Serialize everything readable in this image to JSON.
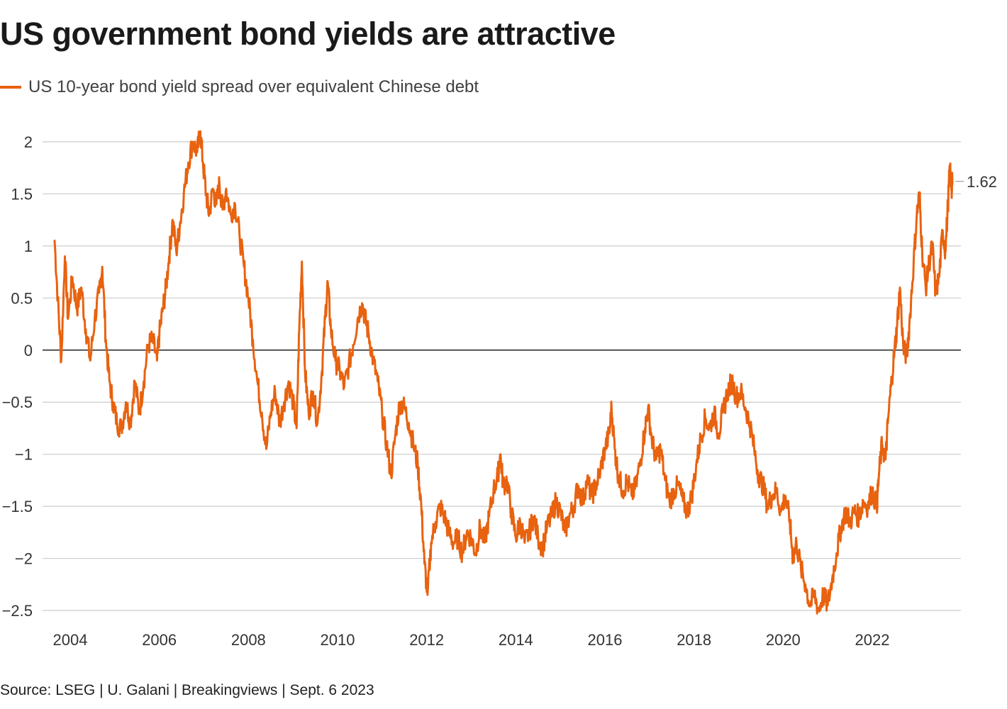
{
  "title": "US government bond yields are attractive",
  "source": "Source: LSEG | U. Galani | Breakingviews | Sept. 6 2023",
  "colors": {
    "series": "#e8620f",
    "grid": "#cccccc",
    "zero": "#222222"
  },
  "chart_data": {
    "type": "line",
    "title": "US government bond yields are attractive",
    "xlabel": "",
    "ylabel": "",
    "xlim": [
      2003.6,
      2023.75
    ],
    "ylim": [
      -2.5,
      2.2
    ],
    "yticks": [
      2,
      1.5,
      1,
      0.5,
      0,
      -0.5,
      -1,
      -1.5,
      -2,
      -2.5
    ],
    "ytick_labels": [
      "2",
      "1.5",
      "1",
      "0.5",
      "0",
      "−0.5",
      "−1",
      "−1.5",
      "−2",
      "−2.5"
    ],
    "xticks": [
      2004,
      2006,
      2008,
      2010,
      2012,
      2014,
      2016,
      2018,
      2020,
      2022
    ],
    "xtick_labels": [
      "2004",
      "2006",
      "2008",
      "2010",
      "2012",
      "2014",
      "2016",
      "2018",
      "2020",
      "2022"
    ],
    "grid": true,
    "legend_position": "top-left",
    "end_label": "1.62",
    "series": [
      {
        "name": "US 10-year bond yield spread over equivalent Chinese debt",
        "color": "#e8620f",
        "points": [
          [
            2003.65,
            1.05
          ],
          [
            2003.72,
            0.5
          ],
          [
            2003.8,
            -0.1
          ],
          [
            2003.88,
            0.9
          ],
          [
            2003.95,
            0.3
          ],
          [
            2004.05,
            0.7
          ],
          [
            2004.15,
            0.4
          ],
          [
            2004.25,
            0.6
          ],
          [
            2004.35,
            0.2
          ],
          [
            2004.45,
            -0.1
          ],
          [
            2004.55,
            0.3
          ],
          [
            2004.65,
            0.55
          ],
          [
            2004.72,
            0.8
          ],
          [
            2004.8,
            0.1
          ],
          [
            2004.88,
            -0.3
          ],
          [
            2004.96,
            -0.5
          ],
          [
            2005.05,
            -0.7
          ],
          [
            2005.15,
            -0.75
          ],
          [
            2005.25,
            -0.5
          ],
          [
            2005.35,
            -0.7
          ],
          [
            2005.45,
            -0.3
          ],
          [
            2005.55,
            -0.6
          ],
          [
            2005.65,
            -0.3
          ],
          [
            2005.75,
            0.05
          ],
          [
            2005.85,
            0.1
          ],
          [
            2005.95,
            -0.1
          ],
          [
            2006.0,
            0.15
          ],
          [
            2006.08,
            0.4
          ],
          [
            2006.15,
            0.6
          ],
          [
            2006.22,
            0.9
          ],
          [
            2006.3,
            1.25
          ],
          [
            2006.38,
            0.95
          ],
          [
            2006.46,
            1.2
          ],
          [
            2006.55,
            1.5
          ],
          [
            2006.65,
            1.8
          ],
          [
            2006.75,
            2.0
          ],
          [
            2006.85,
            1.9
          ],
          [
            2006.92,
            2.1
          ],
          [
            2006.98,
            1.8
          ],
          [
            2007.05,
            1.5
          ],
          [
            2007.12,
            1.3
          ],
          [
            2007.2,
            1.55
          ],
          [
            2007.28,
            1.4
          ],
          [
            2007.35,
            1.6
          ],
          [
            2007.42,
            1.35
          ],
          [
            2007.5,
            1.55
          ],
          [
            2007.6,
            1.3
          ],
          [
            2007.7,
            1.4
          ],
          [
            2007.8,
            1.1
          ],
          [
            2007.9,
            0.8
          ],
          [
            2008.0,
            0.5
          ],
          [
            2008.1,
            0.1
          ],
          [
            2008.2,
            -0.3
          ],
          [
            2008.3,
            -0.6
          ],
          [
            2008.4,
            -0.95
          ],
          [
            2008.5,
            -0.6
          ],
          [
            2008.6,
            -0.4
          ],
          [
            2008.7,
            -0.7
          ],
          [
            2008.8,
            -0.5
          ],
          [
            2008.9,
            -0.3
          ],
          [
            2009.0,
            -0.5
          ],
          [
            2009.08,
            -0.75
          ],
          [
            2009.14,
            0.2
          ],
          [
            2009.2,
            0.85
          ],
          [
            2009.27,
            -0.2
          ],
          [
            2009.35,
            -0.6
          ],
          [
            2009.45,
            -0.4
          ],
          [
            2009.55,
            -0.7
          ],
          [
            2009.65,
            -0.2
          ],
          [
            2009.72,
            0.3
          ],
          [
            2009.78,
            0.65
          ],
          [
            2009.85,
            0.2
          ],
          [
            2009.95,
            -0.1
          ],
          [
            2010.05,
            -0.2
          ],
          [
            2010.15,
            -0.35
          ],
          [
            2010.25,
            -0.15
          ],
          [
            2010.35,
            0.05
          ],
          [
            2010.45,
            0.3
          ],
          [
            2010.55,
            0.45
          ],
          [
            2010.62,
            0.3
          ],
          [
            2010.7,
            0.15
          ],
          [
            2010.8,
            -0.1
          ],
          [
            2010.9,
            -0.3
          ],
          [
            2011.0,
            -0.6
          ],
          [
            2011.1,
            -0.9
          ],
          [
            2011.2,
            -1.2
          ],
          [
            2011.3,
            -0.8
          ],
          [
            2011.4,
            -0.5
          ],
          [
            2011.5,
            -0.55
          ],
          [
            2011.6,
            -0.7
          ],
          [
            2011.7,
            -0.9
          ],
          [
            2011.8,
            -1.1
          ],
          [
            2011.88,
            -1.5
          ],
          [
            2011.95,
            -2.05
          ],
          [
            2012.02,
            -2.35
          ],
          [
            2012.1,
            -1.85
          ],
          [
            2012.2,
            -1.65
          ],
          [
            2012.3,
            -1.5
          ],
          [
            2012.4,
            -1.6
          ],
          [
            2012.5,
            -1.75
          ],
          [
            2012.6,
            -1.85
          ],
          [
            2012.7,
            -1.8
          ],
          [
            2012.8,
            -1.95
          ],
          [
            2012.9,
            -1.75
          ],
          [
            2013.0,
            -1.8
          ],
          [
            2013.1,
            -1.95
          ],
          [
            2013.2,
            -1.7
          ],
          [
            2013.3,
            -1.85
          ],
          [
            2013.4,
            -1.6
          ],
          [
            2013.5,
            -1.35
          ],
          [
            2013.6,
            -1.2
          ],
          [
            2013.65,
            -1.0
          ],
          [
            2013.72,
            -1.3
          ],
          [
            2013.8,
            -1.25
          ],
          [
            2013.9,
            -1.55
          ],
          [
            2014.0,
            -1.8
          ],
          [
            2014.1,
            -1.65
          ],
          [
            2014.2,
            -1.85
          ],
          [
            2014.3,
            -1.75
          ],
          [
            2014.4,
            -1.6
          ],
          [
            2014.5,
            -1.8
          ],
          [
            2014.6,
            -1.9
          ],
          [
            2014.7,
            -1.7
          ],
          [
            2014.8,
            -1.6
          ],
          [
            2014.9,
            -1.45
          ],
          [
            2015.0,
            -1.55
          ],
          [
            2015.1,
            -1.75
          ],
          [
            2015.2,
            -1.6
          ],
          [
            2015.3,
            -1.5
          ],
          [
            2015.4,
            -1.3
          ],
          [
            2015.5,
            -1.45
          ],
          [
            2015.6,
            -1.25
          ],
          [
            2015.7,
            -1.4
          ],
          [
            2015.8,
            -1.3
          ],
          [
            2015.9,
            -1.15
          ],
          [
            2016.0,
            -0.95
          ],
          [
            2016.1,
            -0.8
          ],
          [
            2016.15,
            -0.55
          ],
          [
            2016.22,
            -0.95
          ],
          [
            2016.3,
            -1.2
          ],
          [
            2016.4,
            -1.35
          ],
          [
            2016.5,
            -1.25
          ],
          [
            2016.6,
            -1.4
          ],
          [
            2016.7,
            -1.3
          ],
          [
            2016.8,
            -1.05
          ],
          [
            2016.9,
            -0.75
          ],
          [
            2016.97,
            -0.55
          ],
          [
            2017.05,
            -0.85
          ],
          [
            2017.15,
            -1.05
          ],
          [
            2017.25,
            -0.95
          ],
          [
            2017.35,
            -1.25
          ],
          [
            2017.45,
            -1.45
          ],
          [
            2017.55,
            -1.35
          ],
          [
            2017.65,
            -1.3
          ],
          [
            2017.75,
            -1.45
          ],
          [
            2017.85,
            -1.55
          ],
          [
            2017.95,
            -1.4
          ],
          [
            2018.05,
            -1.1
          ],
          [
            2018.15,
            -0.85
          ],
          [
            2018.25,
            -0.65
          ],
          [
            2018.35,
            -0.75
          ],
          [
            2018.45,
            -0.6
          ],
          [
            2018.55,
            -0.8
          ],
          [
            2018.65,
            -0.6
          ],
          [
            2018.75,
            -0.4
          ],
          [
            2018.85,
            -0.3
          ],
          [
            2018.95,
            -0.45
          ],
          [
            2019.05,
            -0.4
          ],
          [
            2019.15,
            -0.55
          ],
          [
            2019.25,
            -0.7
          ],
          [
            2019.35,
            -0.95
          ],
          [
            2019.45,
            -1.2
          ],
          [
            2019.55,
            -1.3
          ],
          [
            2019.65,
            -1.5
          ],
          [
            2019.75,
            -1.4
          ],
          [
            2019.85,
            -1.35
          ],
          [
            2019.95,
            -1.55
          ],
          [
            2020.05,
            -1.4
          ],
          [
            2020.15,
            -1.65
          ],
          [
            2020.22,
            -2.0
          ],
          [
            2020.3,
            -1.85
          ],
          [
            2020.4,
            -2.1
          ],
          [
            2020.5,
            -2.25
          ],
          [
            2020.6,
            -2.45
          ],
          [
            2020.7,
            -2.35
          ],
          [
            2020.8,
            -2.5
          ],
          [
            2020.9,
            -2.35
          ],
          [
            2021.0,
            -2.45
          ],
          [
            2021.1,
            -2.2
          ],
          [
            2021.2,
            -1.95
          ],
          [
            2021.3,
            -1.7
          ],
          [
            2021.4,
            -1.55
          ],
          [
            2021.5,
            -1.65
          ],
          [
            2021.6,
            -1.55
          ],
          [
            2021.7,
            -1.6
          ],
          [
            2021.8,
            -1.45
          ],
          [
            2021.9,
            -1.5
          ],
          [
            2022.0,
            -1.35
          ],
          [
            2022.1,
            -1.5
          ],
          [
            2022.15,
            -1.2
          ],
          [
            2022.22,
            -0.9
          ],
          [
            2022.3,
            -1.05
          ],
          [
            2022.35,
            -0.7
          ],
          [
            2022.42,
            -0.35
          ],
          [
            2022.5,
            0.0
          ],
          [
            2022.55,
            0.2
          ],
          [
            2022.62,
            0.6
          ],
          [
            2022.7,
            0.0
          ],
          [
            2022.78,
            -0.05
          ],
          [
            2022.85,
            0.35
          ],
          [
            2022.93,
            0.85
          ],
          [
            2023.0,
            1.3
          ],
          [
            2023.06,
            1.5
          ],
          [
            2023.12,
            0.95
          ],
          [
            2023.2,
            0.6
          ],
          [
            2023.28,
            0.85
          ],
          [
            2023.35,
            1.0
          ],
          [
            2023.42,
            0.55
          ],
          [
            2023.5,
            0.7
          ],
          [
            2023.58,
            1.15
          ],
          [
            2023.64,
            0.95
          ],
          [
            2023.7,
            1.4
          ],
          [
            2023.74,
            1.75
          ],
          [
            2023.78,
            1.55
          ],
          [
            2023.8,
            1.62
          ]
        ]
      }
    ]
  }
}
